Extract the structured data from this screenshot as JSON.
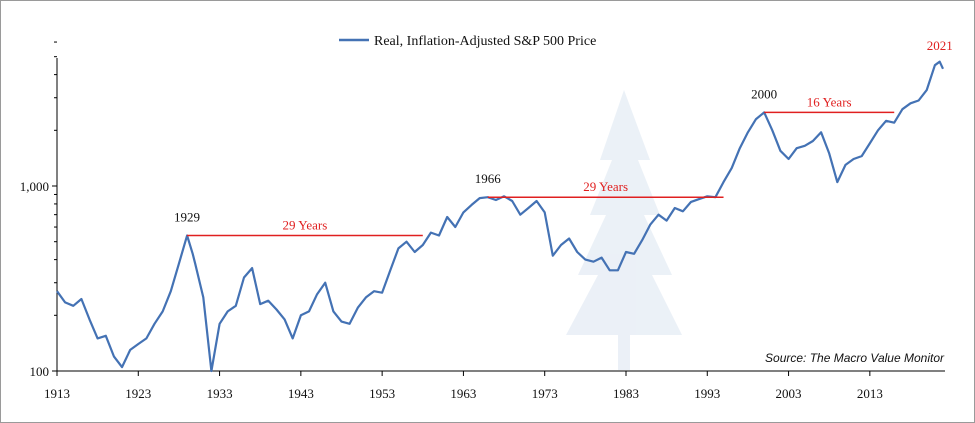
{
  "chart_data": {
    "type": "line",
    "y_scale": "log",
    "ylim": [
      100,
      6000
    ],
    "xlim": [
      1913,
      2022
    ],
    "y_ticks": [
      100,
      1000
    ],
    "y_tick_labels": [
      "100",
      "1,000"
    ],
    "x_ticks": [
      1913,
      1923,
      1933,
      1943,
      1953,
      1963,
      1973,
      1983,
      1993,
      2003,
      2013
    ],
    "x_tick_labels": [
      "1913",
      "1923",
      "1933",
      "1943",
      "1953",
      "1963",
      "1973",
      "1983",
      "1993",
      "2003",
      "2013"
    ],
    "legend": {
      "position": "top-center",
      "label": "Real, Inflation-Adjusted S&P 500 Price"
    },
    "series": [
      {
        "name": "Real, Inflation-Adjusted S&P 500 Price",
        "color": "#4472b4",
        "points": [
          [
            1913,
            270
          ],
          [
            1914,
            235
          ],
          [
            1915,
            225
          ],
          [
            1916,
            245
          ],
          [
            1917,
            190
          ],
          [
            1918,
            150
          ],
          [
            1919,
            155
          ],
          [
            1920,
            120
          ],
          [
            1921,
            105
          ],
          [
            1922,
            130
          ],
          [
            1923,
            140
          ],
          [
            1924,
            150
          ],
          [
            1925,
            180
          ],
          [
            1926,
            210
          ],
          [
            1927,
            270
          ],
          [
            1928,
            380
          ],
          [
            1929,
            540
          ],
          [
            1929.7,
            430
          ],
          [
            1930,
            380
          ],
          [
            1931,
            250
          ],
          [
            1932,
            100
          ],
          [
            1933,
            180
          ],
          [
            1934,
            210
          ],
          [
            1935,
            225
          ],
          [
            1936,
            320
          ],
          [
            1937,
            360
          ],
          [
            1938,
            230
          ],
          [
            1939,
            240
          ],
          [
            1940,
            215
          ],
          [
            1941,
            190
          ],
          [
            1942,
            150
          ],
          [
            1943,
            200
          ],
          [
            1944,
            210
          ],
          [
            1945,
            260
          ],
          [
            1946,
            300
          ],
          [
            1947,
            210
          ],
          [
            1948,
            185
          ],
          [
            1949,
            180
          ],
          [
            1950,
            220
          ],
          [
            1951,
            250
          ],
          [
            1952,
            270
          ],
          [
            1953,
            265
          ],
          [
            1954,
            350
          ],
          [
            1955,
            460
          ],
          [
            1956,
            500
          ],
          [
            1957,
            440
          ],
          [
            1958,
            480
          ],
          [
            1959,
            560
          ],
          [
            1960,
            540
          ],
          [
            1961,
            680
          ],
          [
            1962,
            600
          ],
          [
            1963,
            720
          ],
          [
            1964,
            790
          ],
          [
            1965,
            860
          ],
          [
            1966,
            870
          ],
          [
            1967,
            840
          ],
          [
            1968,
            880
          ],
          [
            1969,
            830
          ],
          [
            1970,
            700
          ],
          [
            1971,
            760
          ],
          [
            1972,
            830
          ],
          [
            1973,
            720
          ],
          [
            1974,
            420
          ],
          [
            1975,
            480
          ],
          [
            1976,
            520
          ],
          [
            1977,
            440
          ],
          [
            1978,
            400
          ],
          [
            1979,
            390
          ],
          [
            1980,
            410
          ],
          [
            1981,
            350
          ],
          [
            1982,
            350
          ],
          [
            1983,
            440
          ],
          [
            1984,
            430
          ],
          [
            1985,
            510
          ],
          [
            1986,
            620
          ],
          [
            1987,
            700
          ],
          [
            1988,
            650
          ],
          [
            1989,
            760
          ],
          [
            1990,
            730
          ],
          [
            1991,
            820
          ],
          [
            1992,
            850
          ],
          [
            1993,
            880
          ],
          [
            1994,
            870
          ],
          [
            1995,
            1050
          ],
          [
            1996,
            1250
          ],
          [
            1997,
            1600
          ],
          [
            1998,
            1950
          ],
          [
            1999,
            2300
          ],
          [
            2000,
            2500
          ],
          [
            2001,
            2000
          ],
          [
            2002,
            1550
          ],
          [
            2003,
            1400
          ],
          [
            2004,
            1600
          ],
          [
            2005,
            1650
          ],
          [
            2006,
            1750
          ],
          [
            2007,
            1950
          ],
          [
            2008,
            1500
          ],
          [
            2009,
            1050
          ],
          [
            2010,
            1300
          ],
          [
            2011,
            1400
          ],
          [
            2012,
            1450
          ],
          [
            2013,
            1700
          ],
          [
            2014,
            2000
          ],
          [
            2015,
            2250
          ],
          [
            2016,
            2200
          ],
          [
            2017,
            2600
          ],
          [
            2018,
            2800
          ],
          [
            2019,
            2900
          ],
          [
            2020,
            3300
          ],
          [
            2021,
            4500
          ],
          [
            2021.6,
            4700
          ],
          [
            2022,
            4300
          ]
        ]
      }
    ],
    "annotations": [
      {
        "year_label": "1929",
        "range_label": "29 Years",
        "from_year": 1929,
        "to_year": 1958,
        "value": 540
      },
      {
        "year_label": "1966",
        "range_label": "29 Years",
        "from_year": 1966,
        "to_year": 1995,
        "value": 870
      },
      {
        "year_label": "2000",
        "range_label": "16 Years",
        "from_year": 2000,
        "to_year": 2016,
        "value": 2500
      },
      {
        "year_label": "2021",
        "at_year": 2021.6,
        "value": 4700
      }
    ],
    "source": "Source: The Macro Value Monitor"
  },
  "colors": {
    "line": "#4472b4",
    "annotation_red": "#e02020",
    "watermark": "#dbe5f1"
  }
}
